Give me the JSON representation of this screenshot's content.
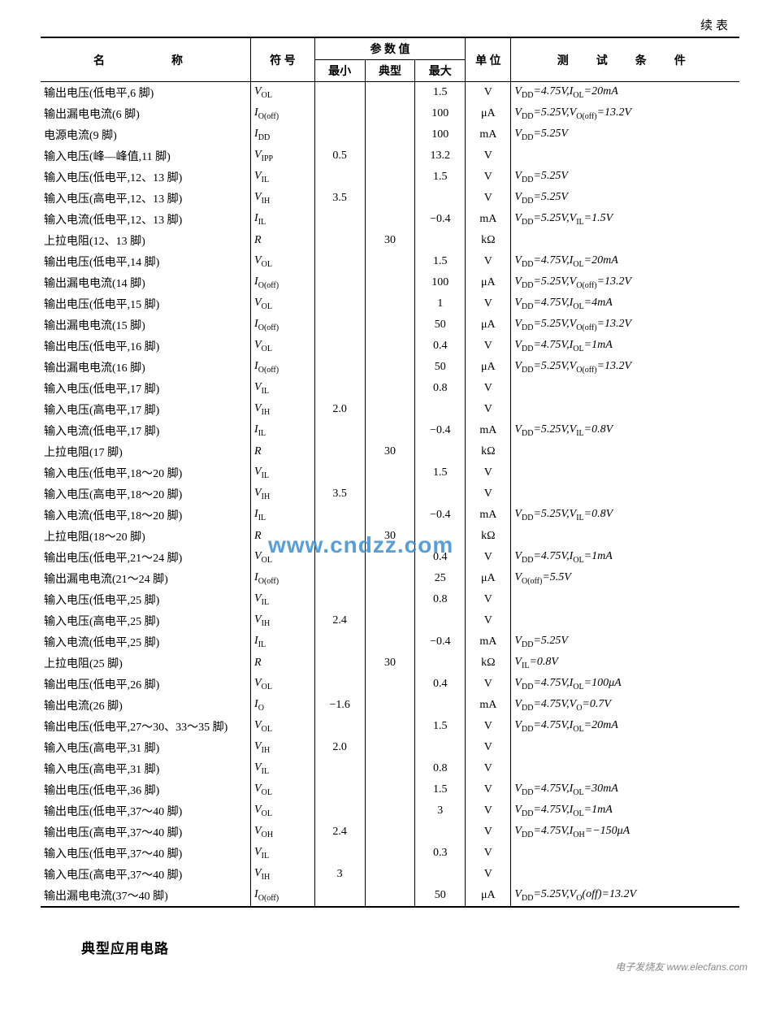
{
  "continued_label": "续表",
  "headers": {
    "name": "名　　称",
    "symbol": "符 号",
    "values_group": "参 数 值",
    "min": "最小",
    "typ": "典型",
    "max": "最大",
    "unit": "单 位",
    "cond": "测　试　条　件"
  },
  "rows": [
    {
      "name": "输出电压(低电平,6 脚)",
      "sym": "V<sub>OL</sub>",
      "min": "",
      "typ": "",
      "max": "1.5",
      "unit": "V",
      "cond": "V<sub>DD</sub>=4.75V,I<sub>OL</sub>=20mA"
    },
    {
      "name": "输出漏电电流(6 脚)",
      "sym": "I<sub>O(off)</sub>",
      "min": "",
      "typ": "",
      "max": "100",
      "unit": "μA",
      "cond": "V<sub>DD</sub>=5.25V,V<sub>O(off)</sub>=13.2V"
    },
    {
      "name": "电源电流(9 脚)",
      "sym": "I<sub>DD</sub>",
      "min": "",
      "typ": "",
      "max": "100",
      "unit": "mA",
      "cond": "V<sub>DD</sub>=5.25V"
    },
    {
      "name": "输入电压(峰—峰值,11 脚)",
      "sym": "V<sub>IPP</sub>",
      "min": "0.5",
      "typ": "",
      "max": "13.2",
      "unit": "V",
      "cond": ""
    },
    {
      "name": "输入电压(低电平,12、13 脚)",
      "sym": "V<sub>IL</sub>",
      "min": "",
      "typ": "",
      "max": "1.5",
      "unit": "V",
      "cond": "V<sub>DD</sub>=5.25V"
    },
    {
      "name": "输入电压(高电平,12、13 脚)",
      "sym": "V<sub>IH</sub>",
      "min": "3.5",
      "typ": "",
      "max": "",
      "unit": "V",
      "cond": "V<sub>DD</sub>=5.25V"
    },
    {
      "name": "输入电流(低电平,12、13 脚)",
      "sym": "I<sub>IL</sub>",
      "min": "",
      "typ": "",
      "max": "−0.4",
      "unit": "mA",
      "cond": "V<sub>DD</sub>=5.25V,V<sub>IL</sub>=1.5V"
    },
    {
      "name": "上拉电阻(12、13 脚)",
      "sym": "R",
      "min": "",
      "typ": "30",
      "max": "",
      "unit": "kΩ",
      "cond": ""
    },
    {
      "name": "输出电压(低电平,14 脚)",
      "sym": "V<sub>OL</sub>",
      "min": "",
      "typ": "",
      "max": "1.5",
      "unit": "V",
      "cond": "V<sub>DD</sub>=4.75V,I<sub>OL</sub>=20mA"
    },
    {
      "name": "输出漏电电流(14 脚)",
      "sym": "I<sub>O(off)</sub>",
      "min": "",
      "typ": "",
      "max": "100",
      "unit": "μA",
      "cond": "V<sub>DD</sub>=5.25V,V<sub>O(off)</sub>=13.2V"
    },
    {
      "name": "输出电压(低电平,15 脚)",
      "sym": "V<sub>OL</sub>",
      "min": "",
      "typ": "",
      "max": "1",
      "unit": "V",
      "cond": "V<sub>DD</sub>=4.75V,I<sub>OL</sub>=4mA"
    },
    {
      "name": "输出漏电电流(15 脚)",
      "sym": "I<sub>O(off)</sub>",
      "min": "",
      "typ": "",
      "max": "50",
      "unit": "μA",
      "cond": "V<sub>DD</sub>=5.25V,V<sub>O(off)</sub>=13.2V"
    },
    {
      "name": "输出电压(低电平,16 脚)",
      "sym": "V<sub>OL</sub>",
      "min": "",
      "typ": "",
      "max": "0.4",
      "unit": "V",
      "cond": "V<sub>DD</sub>=4.75V,I<sub>OL</sub>=1mA"
    },
    {
      "name": "输出漏电电流(16 脚)",
      "sym": "I<sub>O(off)</sub>",
      "min": "",
      "typ": "",
      "max": "50",
      "unit": "μA",
      "cond": "V<sub>DD</sub>=5.25V,V<sub>O(off)</sub>=13.2V"
    },
    {
      "name": "输入电压(低电平,17 脚)",
      "sym": "V<sub>IL</sub>",
      "min": "",
      "typ": "",
      "max": "0.8",
      "unit": "V",
      "cond": ""
    },
    {
      "name": "输入电压(高电平,17 脚)",
      "sym": "V<sub>IH</sub>",
      "min": "2.0",
      "typ": "",
      "max": "",
      "unit": "V",
      "cond": ""
    },
    {
      "name": "输入电流(低电平,17 脚)",
      "sym": "I<sub>IL</sub>",
      "min": "",
      "typ": "",
      "max": "−0.4",
      "unit": "mA",
      "cond": "V<sub>DD</sub>=5.25V,V<sub>IL</sub>=0.8V"
    },
    {
      "name": "上拉电阻(17 脚)",
      "sym": "R",
      "min": "",
      "typ": "30",
      "max": "",
      "unit": "kΩ",
      "cond": ""
    },
    {
      "name": "输入电压(低电平,18～20 脚)",
      "sym": "V<sub>IL</sub>",
      "min": "",
      "typ": "",
      "max": "1.5",
      "unit": "V",
      "cond": ""
    },
    {
      "name": "输入电压(高电平,18～20 脚)",
      "sym": "V<sub>IH</sub>",
      "min": "3.5",
      "typ": "",
      "max": "",
      "unit": "V",
      "cond": ""
    },
    {
      "name": "输入电流(低电平,18～20 脚)",
      "sym": "I<sub>IL</sub>",
      "min": "",
      "typ": "",
      "max": "−0.4",
      "unit": "mA",
      "cond": "V<sub>DD</sub>=5.25V,V<sub>IL</sub>=0.8V"
    },
    {
      "name": "上拉电阻(18～20 脚)",
      "sym": "R",
      "min": "",
      "typ": "30",
      "max": "",
      "unit": "kΩ",
      "cond": ""
    },
    {
      "name": "输出电压(低电平,21～24 脚)",
      "sym": "V<sub>OL</sub>",
      "min": "",
      "typ": "",
      "max": "0.4",
      "unit": "V",
      "cond": "V<sub>DD</sub>=4.75V,I<sub>OL</sub>=1mA"
    },
    {
      "name": "输出漏电电流(21～24 脚)",
      "sym": "I<sub>O(off)</sub>",
      "min": "",
      "typ": "",
      "max": "25",
      "unit": "μA",
      "cond": "V<sub>O(off)</sub>=5.5V"
    },
    {
      "name": "输入电压(低电平,25 脚)",
      "sym": "V<sub>IL</sub>",
      "min": "",
      "typ": "",
      "max": "0.8",
      "unit": "V",
      "cond": ""
    },
    {
      "name": "输入电压(高电平,25 脚)",
      "sym": "V<sub>IH</sub>",
      "min": "2.4",
      "typ": "",
      "max": "",
      "unit": "V",
      "cond": ""
    },
    {
      "name": "输入电流(低电平,25 脚)",
      "sym": "I<sub>IL</sub>",
      "min": "",
      "typ": "",
      "max": "−0.4",
      "unit": "mA",
      "cond": "V<sub>DD</sub>=5.25V"
    },
    {
      "name": "上拉电阻(25 脚)",
      "sym": "R",
      "min": "",
      "typ": "30",
      "max": "",
      "unit": "kΩ",
      "cond": "V<sub>IL</sub>=0.8V"
    },
    {
      "name": "输出电压(低电平,26 脚)",
      "sym": "V<sub>OL</sub>",
      "min": "",
      "typ": "",
      "max": "0.4",
      "unit": "V",
      "cond": "V<sub>DD</sub>=4.75V,I<sub>OL</sub>=100μA"
    },
    {
      "name": "输出电流(26 脚)",
      "sym": "I<sub>O</sub>",
      "min": "−1.6",
      "typ": "",
      "max": "",
      "unit": "mA",
      "cond": "V<sub>DD</sub>=4.75V,V<sub>O</sub>=0.7V"
    },
    {
      "name": "输出电压(低电平,27～30、33～35 脚)",
      "sym": "V<sub>OL</sub>",
      "min": "",
      "typ": "",
      "max": "1.5",
      "unit": "V",
      "cond": "V<sub>DD</sub>=4.75V,I<sub>OL</sub>=20mA"
    },
    {
      "name": "输入电压(高电平,31 脚)",
      "sym": "V<sub>IH</sub>",
      "min": "2.0",
      "typ": "",
      "max": "",
      "unit": "V",
      "cond": ""
    },
    {
      "name": "输入电压(高电平,31 脚)",
      "sym": "V<sub>IL</sub>",
      "min": "",
      "typ": "",
      "max": "0.8",
      "unit": "V",
      "cond": ""
    },
    {
      "name": "输出电压(低电平,36 脚)",
      "sym": "V<sub>OL</sub>",
      "min": "",
      "typ": "",
      "max": "1.5",
      "unit": "V",
      "cond": "V<sub>DD</sub>=4.75V,I<sub>OL</sub>=30mA"
    },
    {
      "name": "输出电压(低电平,37～40 脚)",
      "sym": "V<sub>OL</sub>",
      "min": "",
      "typ": "",
      "max": "3",
      "unit": "V",
      "cond": "V<sub>DD</sub>=4.75V,I<sub>OL</sub>=1mA"
    },
    {
      "name": "输出电压(高电平,37～40 脚)",
      "sym": "V<sub>OH</sub>",
      "min": "2.4",
      "typ": "",
      "max": "",
      "unit": "V",
      "cond": "V<sub>DD</sub>=4.75V,I<sub>OH</sub>=−150μA"
    },
    {
      "name": "输入电压(低电平,37～40 脚)",
      "sym": "V<sub>IL</sub>",
      "min": "",
      "typ": "",
      "max": "0.3",
      "unit": "V",
      "cond": ""
    },
    {
      "name": "输入电压(高电平,37～40 脚)",
      "sym": "V<sub>IH</sub>",
      "min": "3",
      "typ": "",
      "max": "",
      "unit": "V",
      "cond": ""
    },
    {
      "name": "输出漏电电流(37～40 脚)",
      "sym": "I<sub>O(off)</sub>",
      "min": "",
      "typ": "",
      "max": "50",
      "unit": "μA",
      "cond": "V<sub>DD</sub>=5.25V,V<sub>O</sub>(off)=13.2V"
    }
  ],
  "section_title": "典型应用电路",
  "watermark_text": "www.cndzz.com",
  "footer_text": "电子发烧友 www.elecfans.com"
}
